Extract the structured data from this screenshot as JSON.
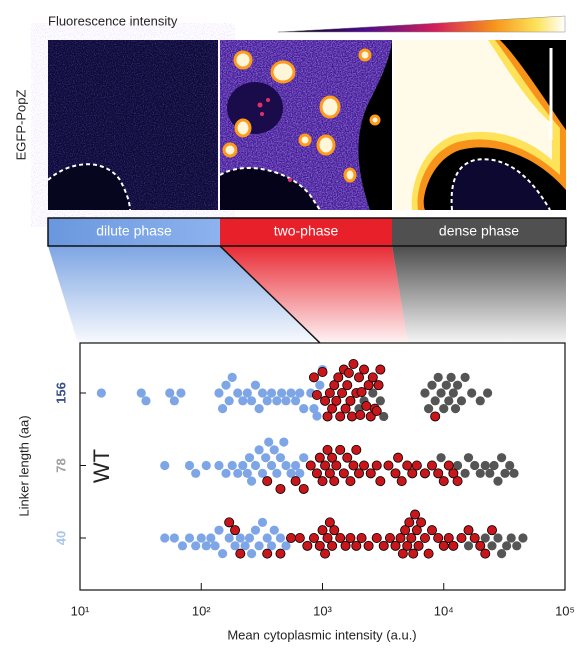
{
  "figure": {
    "colorbar_label": "Fluorescence intensity",
    "channel_label": "EGFP-PopZ"
  },
  "chart_data": {
    "type": "swarm",
    "xlabel": "Mean cytoplasmic intensity (a.u.)",
    "ylabel": "Linker length (aa)",
    "annotation": "WT",
    "xscale": "log",
    "xlim": [
      10,
      100000
    ],
    "xticks": [
      {
        "value": 10,
        "label": "10¹"
      },
      {
        "value": 100,
        "label": "10²"
      },
      {
        "value": 1000,
        "label": "10³"
      },
      {
        "value": 10000,
        "label": "10⁴"
      },
      {
        "value": 100000,
        "label": "10⁵"
      }
    ],
    "categories": [
      "156",
      "78",
      "40"
    ],
    "category_colors": [
      "#3b4f8c",
      "#a0a0a0",
      "#a9c4ea"
    ],
    "series": [
      {
        "name": "dilute phase",
        "color": "#7ea6e6",
        "edgecolor": "none",
        "values": [
          [
            15,
            32,
            35,
            55,
            60,
            68,
            140,
            150,
            160,
            170,
            180,
            200,
            220,
            240,
            260,
            280,
            300,
            320,
            350,
            380,
            420,
            460,
            500,
            550,
            600,
            650,
            700,
            800,
            850,
            900,
            950,
            1000
          ],
          [
            50,
            80,
            90,
            110,
            140,
            160,
            180,
            200,
            220,
            240,
            250,
            260,
            280,
            300,
            320,
            340,
            360,
            380,
            400,
            420,
            450,
            480,
            500,
            550,
            600,
            650,
            700
          ],
          [
            50,
            60,
            70,
            80,
            90,
            100,
            110,
            120,
            130,
            140,
            150,
            170,
            190,
            210,
            230,
            250,
            260,
            280,
            300,
            320,
            350,
            380,
            400,
            450,
            500
          ]
        ]
      },
      {
        "name": "dense phase",
        "color": "#555555",
        "edgecolor": "none",
        "values": [
          [
            2000,
            2200,
            2600,
            3000,
            3200,
            7000,
            7500,
            8000,
            8500,
            9000,
            9500,
            10000,
            10500,
            11000,
            11500,
            12000,
            12500,
            13000,
            14000,
            15000,
            17000,
            20000,
            23000
          ],
          [
            9500,
            13000,
            15000,
            16000,
            18000,
            20000,
            22000,
            24000,
            26000,
            28000,
            30000,
            32000,
            35000,
            38000
          ],
          [
            16000,
            22000,
            25000,
            28000,
            30000,
            33000,
            36000,
            40000,
            45000
          ]
        ]
      },
      {
        "name": "two-phase",
        "color": "#c8161b",
        "edgecolor": "#000000",
        "values": [
          [
            850,
            900,
            1000,
            1050,
            1100,
            1150,
            1200,
            1250,
            1300,
            1350,
            1400,
            1450,
            1500,
            1550,
            1600,
            1650,
            1700,
            1750,
            1800,
            1900,
            2000,
            2050,
            2100,
            2200,
            2300,
            2400,
            2500,
            2600,
            2700,
            2800,
            2900,
            3000,
            8500
          ],
          [
            350,
            450,
            600,
            700,
            800,
            900,
            950,
            1000,
            1050,
            1100,
            1150,
            1200,
            1250,
            1300,
            1400,
            1500,
            1600,
            1700,
            1800,
            1900,
            2000,
            2200,
            2500,
            2800,
            3000,
            3500,
            4000,
            4200,
            4500,
            5000,
            5500,
            6000,
            7000,
            8000,
            9000,
            10000,
            11000,
            12000,
            13000
          ],
          [
            170,
            190,
            210,
            350,
            450,
            550,
            650,
            750,
            850,
            950,
            1000,
            1050,
            1100,
            1150,
            1200,
            1250,
            1400,
            1550,
            1700,
            1900,
            2100,
            2400,
            2800,
            3200,
            3600,
            4000,
            4400,
            4600,
            4800,
            5000,
            5200,
            5400,
            5600,
            5800,
            6000,
            6200,
            6500,
            7000,
            7500,
            8000,
            9000,
            10000,
            11000,
            12000,
            14000,
            16000,
            18000,
            20000,
            22000,
            25000
          ]
        ]
      }
    ]
  }
}
